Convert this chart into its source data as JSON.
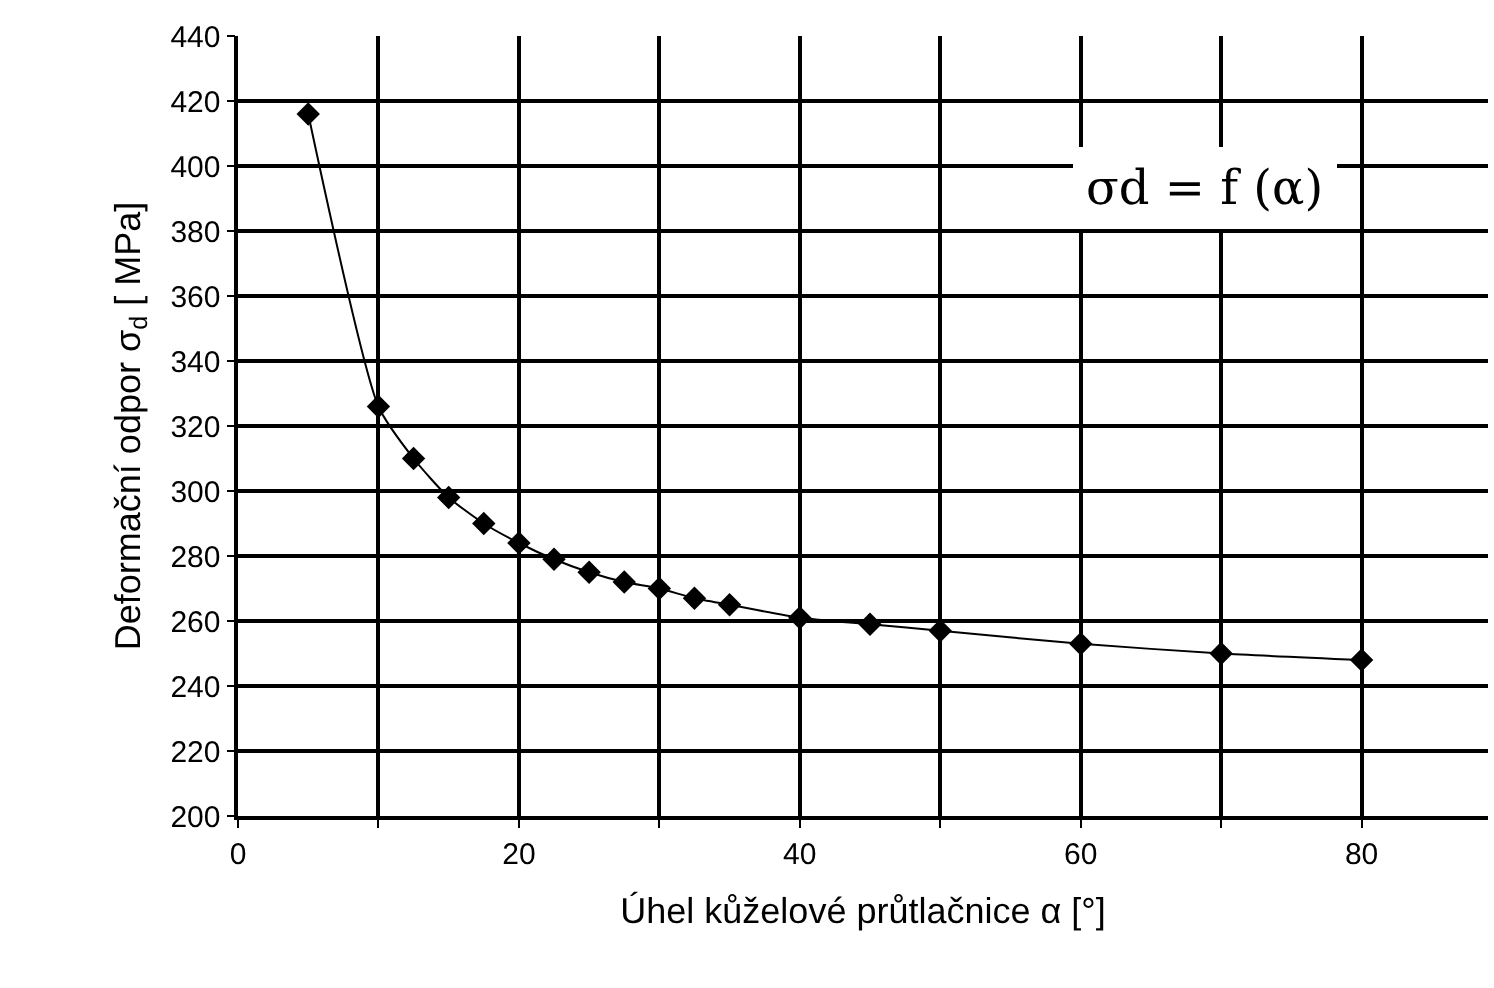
{
  "chart_data": {
    "type": "line",
    "xlabel": "Úhel kůželové průtlačnice α [°]",
    "ylabel": "Deformační odpor σ$_{d}$ [ MPa]",
    "annotations": [
      "σd = f (α)"
    ],
    "x": [
      5,
      10,
      12.5,
      15,
      17.5,
      20,
      22.5,
      25,
      27.5,
      30,
      32.5,
      35,
      40,
      45,
      50,
      60,
      70,
      80
    ],
    "series": [
      {
        "color": "#000000",
        "values": [
          416,
          326,
          310,
          298,
          290,
          284,
          279,
          275,
          272,
          270,
          267,
          265,
          261,
          259,
          257,
          253,
          250,
          248
        ]
      }
    ],
    "xlim": [
      0,
      89
    ],
    "xticks": [
      0,
      {
        "value": 10,
        "label": null
      },
      20,
      {
        "value": 30,
        "label": null
      },
      40,
      {
        "value": 50,
        "label": null
      },
      60,
      {
        "value": 70,
        "label": null
      },
      80
    ],
    "ylim": [
      200,
      440
    ],
    "yticks": [
      200,
      220,
      240,
      260,
      280,
      300,
      320,
      340,
      360,
      380,
      400,
      420,
      440
    ],
    "grid": true,
    "marker": "diamond",
    "line_style": "solid"
  }
}
